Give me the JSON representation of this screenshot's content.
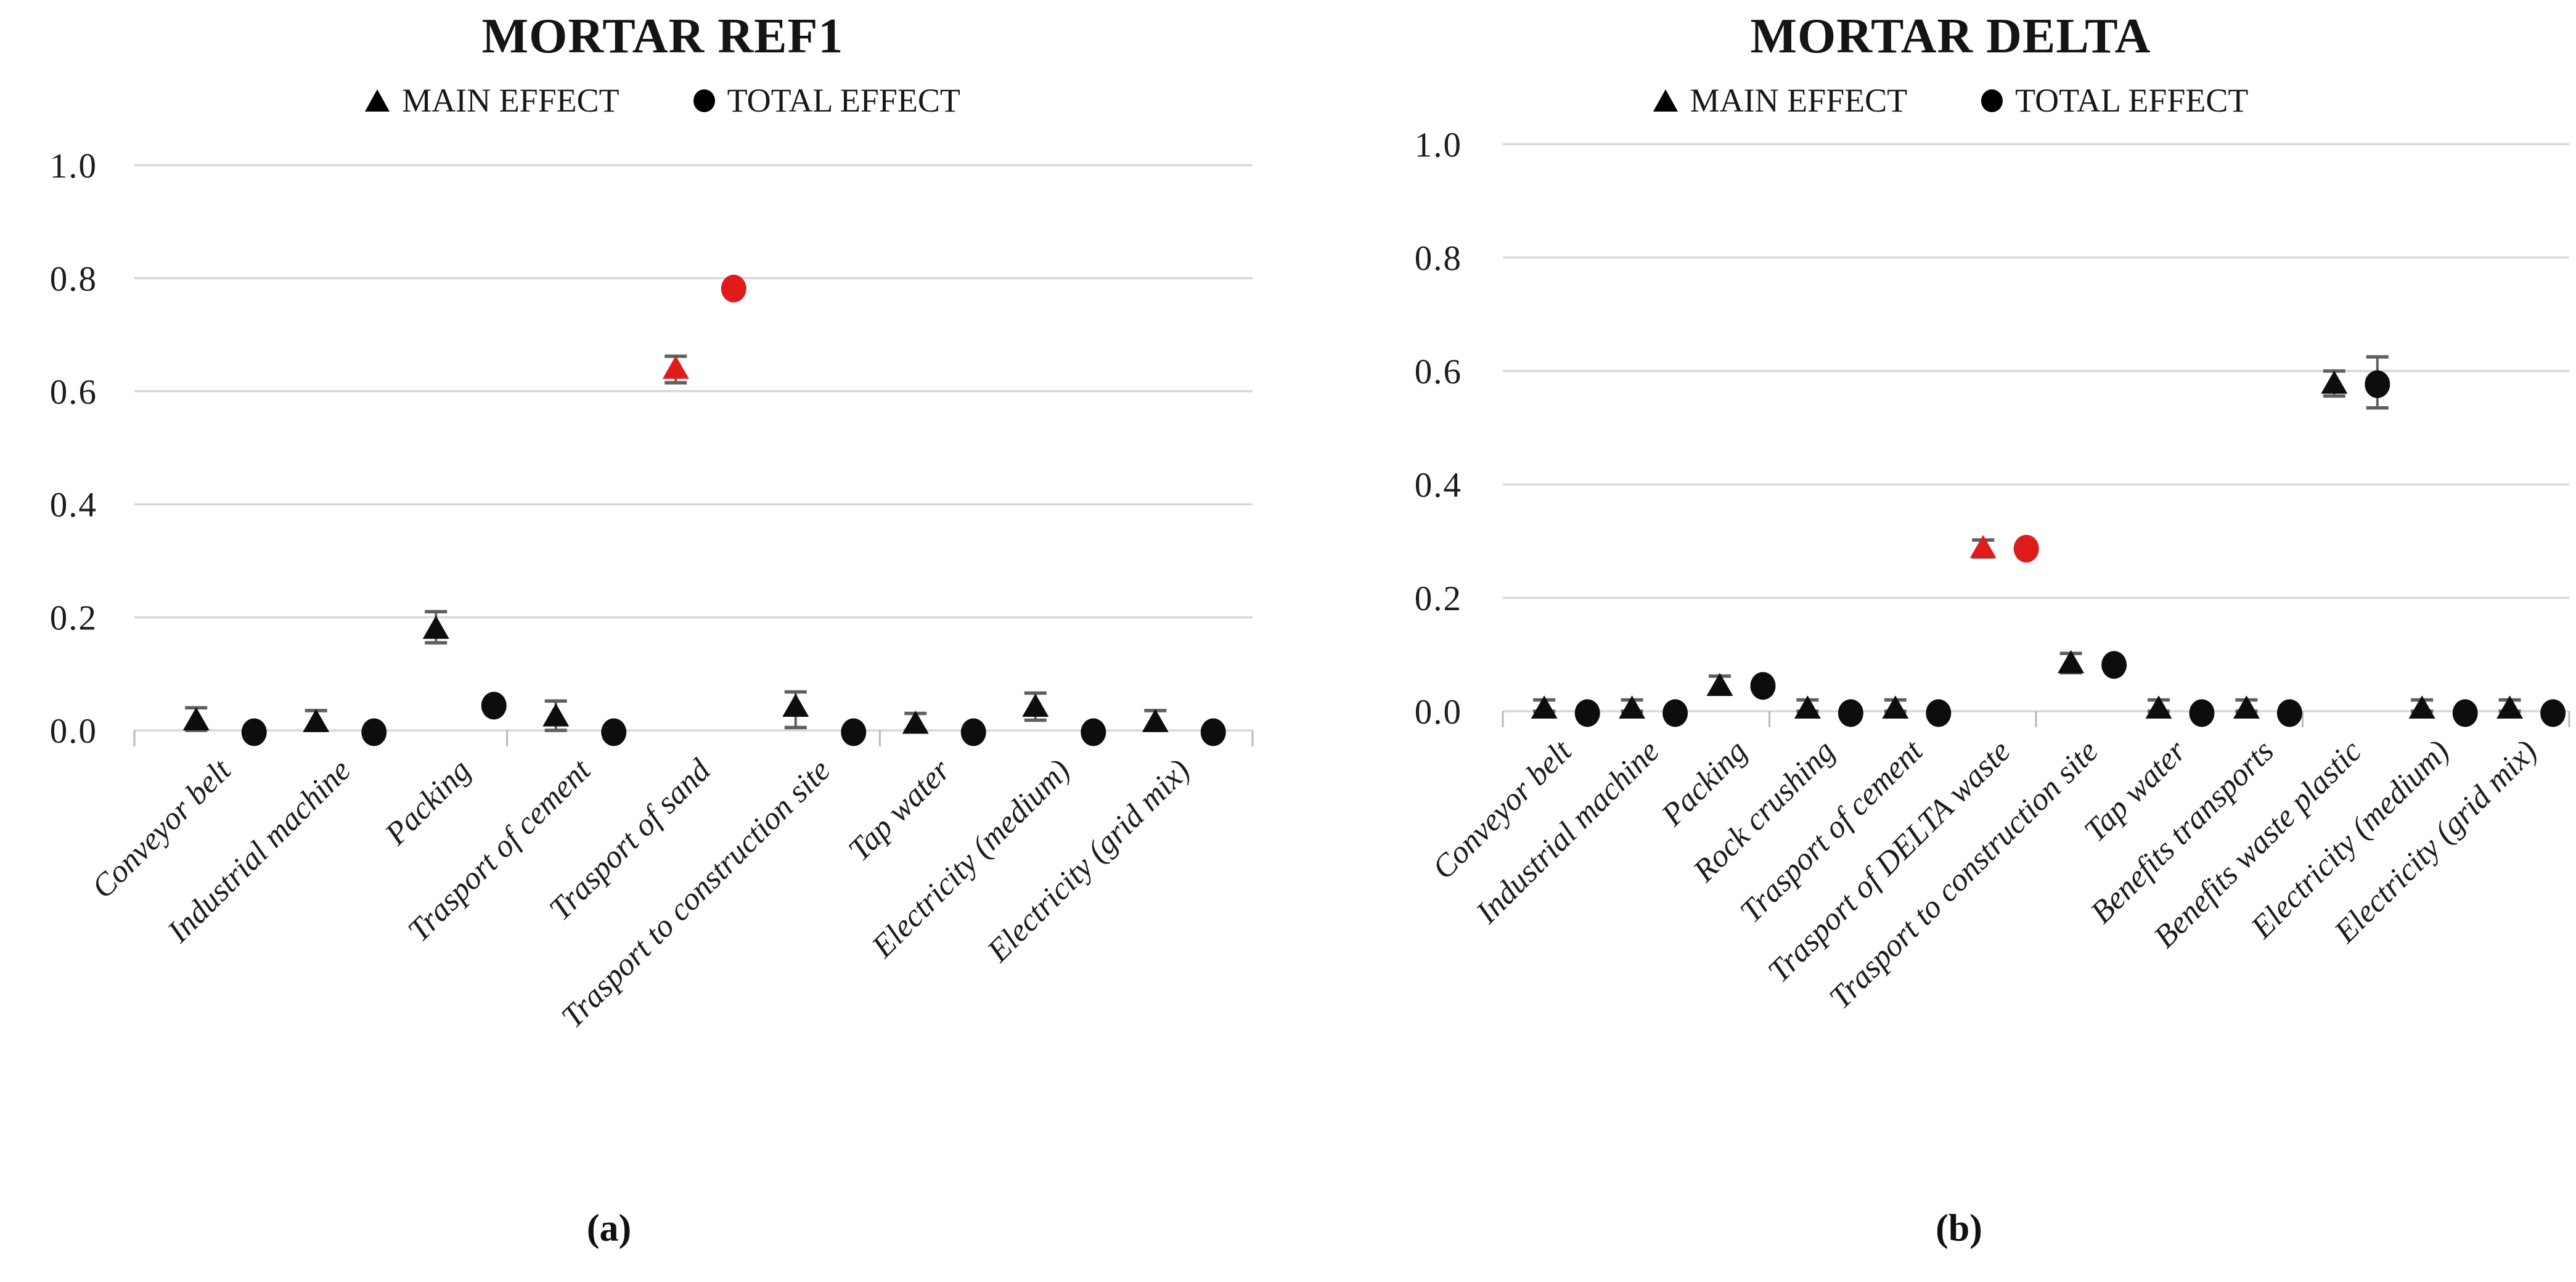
{
  "figure": {
    "background": "#ffffff",
    "caption_a": "(a)",
    "caption_b": "(b)"
  },
  "colors": {
    "marker_black": "#0d0d0d",
    "highlight_red": "#e01b1c",
    "gridline_gray": "#d7d7d7",
    "error_bar_gray": "#5f5f5f",
    "tick_gray": "#b9b9b9",
    "text_dark": "#1c1c1c"
  },
  "chart_data": [
    {
      "panel": "a",
      "type": "scatter",
      "title": "MORTAR REF1",
      "caption": "(a)",
      "legend": [
        {
          "label": "MAIN EFFECT",
          "marker": "triangle"
        },
        {
          "label": "TOTAL EFFECT",
          "marker": "circle"
        }
      ],
      "ylim": [
        0.0,
        1.0
      ],
      "yticks": [
        "1.0",
        "0.8",
        "0.6",
        "0.4",
        "0.2",
        "0.0"
      ],
      "ytick_values": [
        1.0,
        0.8,
        0.6,
        0.4,
        0.2,
        0.0
      ],
      "grid": true,
      "legend_position": "top",
      "highlight_color": "#e01b1c",
      "highlighted_category": "Trasport of sand",
      "categories": [
        "Conveyor belt",
        "Industrial machine",
        "Packing",
        "Trasport of cement",
        "Trasport of sand",
        "Trasport to construction site",
        "Tap water",
        "Electricity (medium)",
        "Electricity (grid mix)"
      ],
      "series": [
        {
          "name": "MAIN EFFECT",
          "marker": "triangle",
          "highlight_index": 4,
          "values": [
            0.018,
            0.015,
            0.18,
            0.025,
            0.64,
            0.042,
            0.012,
            0.042,
            0.015
          ],
          "error_low": [
            0.0,
            0.0,
            0.155,
            0.0,
            0.615,
            0.005,
            0.0,
            0.018,
            0.0
          ],
          "error_high": [
            0.04,
            0.035,
            0.21,
            0.052,
            0.662,
            0.068,
            0.03,
            0.066,
            0.035
          ]
        },
        {
          "name": "TOTAL EFFECT",
          "marker": "circle",
          "highlight_index": 4,
          "values": [
            0.0,
            0.0,
            0.047,
            0.0,
            0.785,
            0.0,
            0.0,
            0.0,
            0.0
          ],
          "error_low": [
            null,
            null,
            null,
            null,
            null,
            null,
            null,
            null,
            null
          ],
          "error_high": [
            null,
            null,
            null,
            null,
            null,
            null,
            null,
            null,
            null
          ]
        }
      ]
    },
    {
      "panel": "b",
      "type": "scatter",
      "title": "MORTAR DELTA",
      "caption": "(b)",
      "legend": [
        {
          "label": "MAIN EFFECT",
          "marker": "triangle"
        },
        {
          "label": "TOTAL EFFECT",
          "marker": "circle"
        }
      ],
      "ylim": [
        0.0,
        1.0
      ],
      "yticks": [
        "1.0",
        "0.8",
        "0.6",
        "0.4",
        "0.2",
        "0.0"
      ],
      "ytick_values": [
        1.0,
        0.8,
        0.6,
        0.4,
        0.2,
        0.0
      ],
      "grid": true,
      "legend_position": "top",
      "highlight_color": "#e01b1c",
      "highlighted_category": "Trasport of DELTA waste",
      "categories": [
        "Conveyor belt",
        "Industrial machine",
        "Packing",
        "Rock crushing",
        "Trasport of cement",
        "Trasport of DELTA waste",
        "Trasport to construction site",
        "Tap water",
        "Benefits transports",
        "Benefits waste plastic",
        "Electricity (medium)",
        "Electricity (grid mix)"
      ],
      "series": [
        {
          "name": "MAIN EFFECT",
          "marker": "triangle",
          "highlight_index": 5,
          "values": [
            0.005,
            0.005,
            0.045,
            0.005,
            0.005,
            0.288,
            0.085,
            0.005,
            0.005,
            0.578,
            0.005,
            0.005
          ],
          "error_low": [
            0.0,
            0.0,
            0.03,
            0.0,
            0.0,
            0.272,
            0.068,
            0.0,
            0.0,
            0.556,
            0.0,
            0.0
          ],
          "error_high": [
            0.02,
            0.02,
            0.062,
            0.02,
            0.02,
            0.302,
            0.102,
            0.02,
            0.02,
            0.6,
            0.02,
            0.02
          ]
        },
        {
          "name": "TOTAL EFFECT",
          "marker": "circle",
          "highlight_index": 5,
          "values": [
            0.0,
            0.0,
            0.048,
            0.0,
            0.0,
            0.29,
            0.085,
            0.0,
            0.0,
            0.58,
            0.0,
            0.0
          ],
          "error_low": [
            null,
            null,
            null,
            null,
            null,
            null,
            null,
            null,
            null,
            0.535,
            null,
            null
          ],
          "error_high": [
            null,
            null,
            null,
            null,
            null,
            null,
            null,
            null,
            null,
            0.625,
            null,
            null
          ]
        }
      ]
    }
  ]
}
